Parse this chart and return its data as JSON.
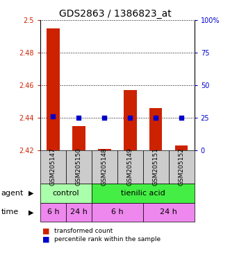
{
  "title": "GDS2863 / 1386823_at",
  "samples": [
    "GSM205147",
    "GSM205150",
    "GSM205148",
    "GSM205149",
    "GSM205151",
    "GSM205152"
  ],
  "bar_tops": [
    2.495,
    2.435,
    2.421,
    2.457,
    2.446,
    2.423
  ],
  "bar_bottom": 2.42,
  "percentile_values": [
    2.441,
    2.44,
    2.44,
    2.44,
    2.44,
    2.44
  ],
  "bar_color": "#cc2200",
  "dot_color": "#0000cc",
  "ylim_left": [
    2.42,
    2.5
  ],
  "ylim_right": [
    0,
    100
  ],
  "yticks_left": [
    2.42,
    2.44,
    2.46,
    2.48,
    2.5
  ],
  "yticks_left_labels": [
    "2.42",
    "2.44",
    "2.46",
    "2.48",
    "2.5"
  ],
  "yticks_right": [
    0,
    25,
    50,
    75,
    100
  ],
  "yticks_right_labels": [
    "0",
    "25",
    "50",
    "75",
    "100%"
  ],
  "hlines": [
    2.44,
    2.46,
    2.48,
    2.5
  ],
  "bar_color_hex": "#cc2200",
  "dot_color_hex": "#0000cc",
  "agent_color_control": "#aaffaa",
  "agent_color_tienilic": "#44ee44",
  "time_color": "#ee88ee",
  "legend_item1": "transformed count",
  "legend_item2": "percentile rank within the sample",
  "bar_width": 0.5,
  "title_fontsize": 10,
  "tick_fontsize": 7,
  "annot_fontsize": 8
}
